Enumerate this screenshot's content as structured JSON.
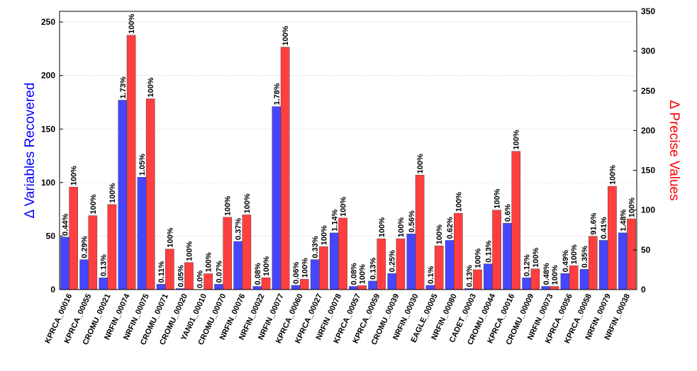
{
  "chart_data": {
    "type": "bar",
    "categories": [
      "KPRCA_00016",
      "KPRCA_00055",
      "CROMU_00021",
      "NRFIN_00074",
      "NRFIN_00075",
      "CROMU_00071",
      "CROMU_00020",
      "YAN01_00010",
      "CROMU_00070",
      "NRFIN_00076",
      "NRFIN_00022",
      "NRFIN_00077",
      "KPRCA_00060",
      "KPRCA_00027",
      "NRFIN_00078",
      "KPRCA_00057",
      "KPRCA_00059",
      "CROMU_00039",
      "NRFIN_00030",
      "EAGLE_00005",
      "NRFIN_00080",
      "CADET_00003",
      "CROMU_00044",
      "KPRCA_00016",
      "CROMU_00009",
      "NRFIN_00073",
      "KPRCA_00056",
      "KPRCA_00058",
      "NRFIN_00079",
      "NRFIN_00038"
    ],
    "series": [
      {
        "name": "Δ Variables Recovered",
        "axis": "left",
        "color": "#4646ff",
        "values": [
          49,
          28,
          11,
          177,
          105,
          5,
          1,
          0,
          5,
          45,
          3,
          171,
          4,
          28,
          53,
          3,
          8,
          15,
          52,
          4,
          46,
          1,
          24,
          62,
          11,
          3,
          15,
          19,
          46,
          53
        ],
        "labels": [
          "0.44%",
          "0.29%",
          "0.13%",
          "1.73%",
          "1.05%",
          "0.11%",
          "0.05%",
          "0.0%",
          "0.07%",
          "0.37%",
          "0.08%",
          "1.78%",
          "0.06%",
          "0.33%",
          "1.14%",
          "0.08%",
          "0.13%",
          "0.25%",
          "0.56%",
          "0.1%",
          "0.62%",
          "0.13%",
          "0.13%",
          "0.6%",
          "0.12%",
          "0.48%",
          "0.49%",
          "0.35%",
          "0.41%",
          "1.48%"
        ]
      },
      {
        "name": "Δ Precise Values",
        "axis": "right",
        "color": "#ff3f3f",
        "values": [
          129,
          93,
          107,
          320,
          240,
          51,
          34,
          20,
          91,
          94,
          15,
          305,
          13,
          54,
          90,
          5,
          64,
          64,
          144,
          55,
          96,
          25,
          100,
          174,
          26,
          4,
          30,
          67,
          130,
          89
        ],
        "labels": [
          "100%",
          "100%",
          "100%",
          "100%",
          "100%",
          "100%",
          "100%",
          "100%",
          "100%",
          "100%",
          "100%",
          "100%",
          "100%",
          "100%",
          "100%",
          "100%",
          "100%",
          "100%",
          "100%",
          "100%",
          "100%",
          "100%",
          "100%",
          "100%",
          "100%",
          "100%",
          "100%",
          "91.6%",
          "100%",
          "100%"
        ]
      }
    ],
    "left_axis": {
      "label": "Δ Variables Recovered",
      "ylim": [
        0,
        260
      ],
      "ticks": [
        0,
        50,
        100,
        150,
        200,
        250
      ],
      "color": "#0000ff"
    },
    "right_axis": {
      "label": "Δ Precise Values",
      "ylim": [
        0,
        350
      ],
      "ticks": [
        0,
        50,
        100,
        150,
        200,
        250,
        300,
        350
      ],
      "color": "#ff0000"
    },
    "grid": true,
    "legend": "none"
  }
}
